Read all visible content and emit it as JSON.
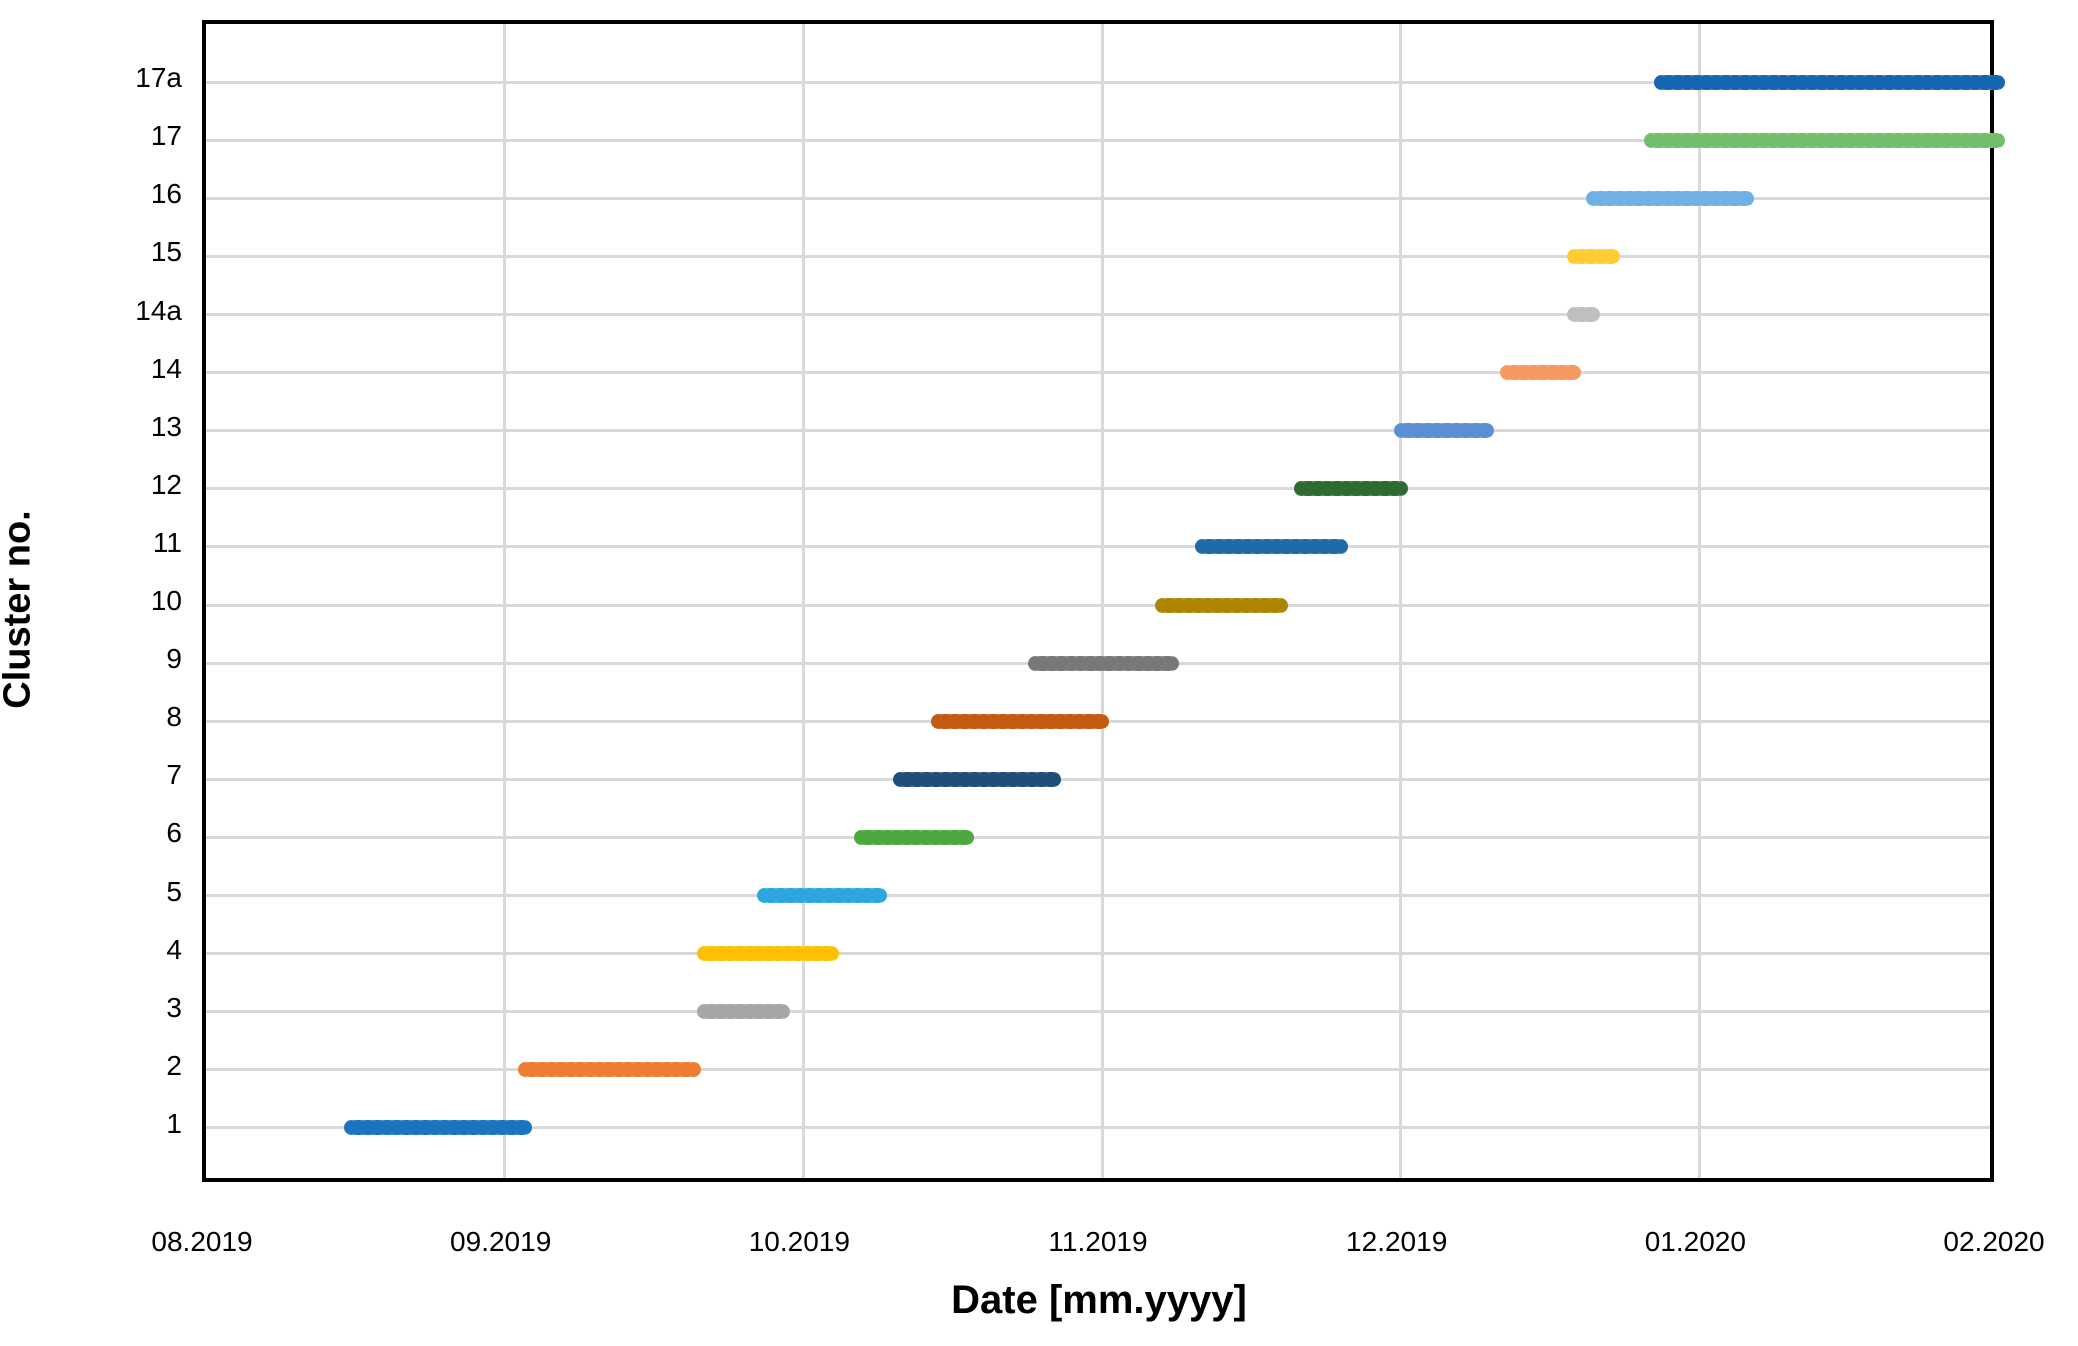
{
  "chart_data": {
    "type": "scatter",
    "title": "",
    "xlabel": "Date [mm.yyyy]",
    "ylabel": "Cluster no.",
    "x_tick_labels": [
      "08.2019",
      "09.2019",
      "10.2019",
      "11.2019",
      "12.2019",
      "01.2020",
      "02.2020"
    ],
    "x_range": [
      "2019-08-01",
      "2020-02-01"
    ],
    "y_categories": [
      "1",
      "2",
      "3",
      "4",
      "5",
      "6",
      "7",
      "8",
      "9",
      "10",
      "11",
      "12",
      "13",
      "14",
      "14a",
      "15",
      "16",
      "17",
      "17a"
    ],
    "y_axis_units": 20,
    "grid": true,
    "gridline_color": "#d9d9d9",
    "plot_border_color": "#000000",
    "background": "#ffffff",
    "marker_style": "overlapping-dots",
    "series": [
      {
        "cluster": "1",
        "start": "2019-08-16",
        "end": "2019-09-03",
        "color": "#1C73C0"
      },
      {
        "cluster": "2",
        "start": "2019-09-03",
        "end": "2019-09-20",
        "color": "#ED7D31"
      },
      {
        "cluster": "3",
        "start": "2019-09-21",
        "end": "2019-09-29",
        "color": "#A6A6A6"
      },
      {
        "cluster": "4",
        "start": "2019-09-21",
        "end": "2019-10-04",
        "color": "#FFC000"
      },
      {
        "cluster": "5",
        "start": "2019-09-27",
        "end": "2019-10-09",
        "color": "#2BA7DF"
      },
      {
        "cluster": "6",
        "start": "2019-10-07",
        "end": "2019-10-18",
        "color": "#4BA83D"
      },
      {
        "cluster": "7",
        "start": "2019-10-11",
        "end": "2019-10-27",
        "color": "#1F4E79"
      },
      {
        "cluster": "8",
        "start": "2019-10-15",
        "end": "2019-11-01",
        "color": "#C45911"
      },
      {
        "cluster": "9",
        "start": "2019-10-25",
        "end": "2019-11-08",
        "color": "#787878"
      },
      {
        "cluster": "10",
        "start": "2019-11-07",
        "end": "2019-11-19",
        "color": "#AD8500"
      },
      {
        "cluster": "11",
        "start": "2019-11-11",
        "end": "2019-11-25",
        "color": "#1B6CA8"
      },
      {
        "cluster": "12",
        "start": "2019-11-21",
        "end": "2019-12-01",
        "color": "#2E6B30"
      },
      {
        "cluster": "13",
        "start": "2019-12-01",
        "end": "2019-12-10",
        "color": "#5B8FD4"
      },
      {
        "cluster": "14",
        "start": "2019-12-12",
        "end": "2019-12-19",
        "color": "#F49A5F"
      },
      {
        "cluster": "14a",
        "start": "2019-12-19",
        "end": "2019-12-21",
        "color": "#BFBFBF"
      },
      {
        "cluster": "15",
        "start": "2019-12-19",
        "end": "2019-12-23",
        "color": "#FFCD33"
      },
      {
        "cluster": "16",
        "start": "2019-12-21",
        "end": "2020-01-06",
        "color": "#6FB1E4"
      },
      {
        "cluster": "17",
        "start": "2019-12-27",
        "end": "2020-02-01",
        "color": "#71BF6B"
      },
      {
        "cluster": "17a",
        "start": "2019-12-28",
        "end": "2020-02-01",
        "color": "#1565B0"
      }
    ]
  }
}
